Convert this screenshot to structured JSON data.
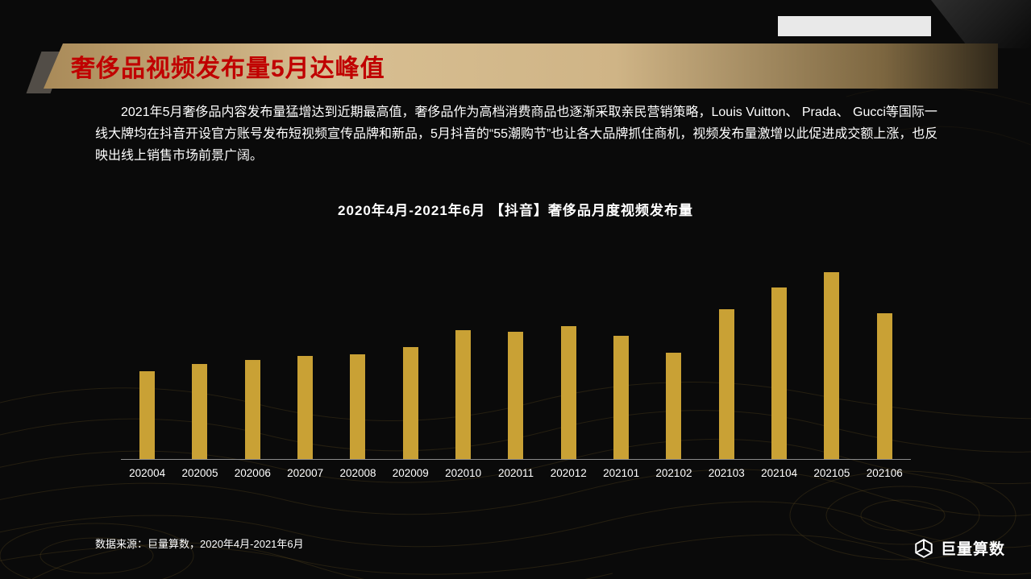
{
  "header": {
    "title": "奢侈品视频发布量5月达峰值"
  },
  "intro": {
    "text": "2021年5月奢侈品内容发布量猛增达到近期最高值，奢侈品作为高档消费商品也逐渐采取亲民营销策略，Louis Vuitton、 Prada、 Gucci等国际一线大牌均在抖音开设官方账号发布短视频宣传品牌和新品，5月抖音的“55潮购节”也让各大品牌抓住商机，视频发布量激增以此促进成交额上涨，也反映出线上销售市场前景广阔。"
  },
  "chart_data": {
    "type": "bar",
    "title": "2020年4月-2021年6月 【抖音】奢侈品月度视频发布量",
    "categories": [
      "202004",
      "202005",
      "202006",
      "202007",
      "202008",
      "202009",
      "202010",
      "202011",
      "202012",
      "202101",
      "202102",
      "202103",
      "202104",
      "202105",
      "202106"
    ],
    "values": [
      47,
      51,
      53,
      55,
      56,
      60,
      69,
      68,
      71,
      66,
      57,
      80,
      92,
      100,
      78
    ],
    "xlabel": "",
    "ylabel": "",
    "ylim": [
      0,
      100
    ],
    "grid": false,
    "legend": false,
    "bar_color": "#c9a135"
  },
  "footer": {
    "source": "数据来源：巨量算数，2020年4月-2021年6月",
    "logo_text": "巨量算数"
  },
  "colors": {
    "background": "#0a0a0a",
    "bar": "#c9a135",
    "title_red": "#c00000",
    "banner_gold_light": "#d8bf92",
    "banner_gold_dark": "#a98a58",
    "text": "#ffffff",
    "contour_line": "#6a5524"
  }
}
